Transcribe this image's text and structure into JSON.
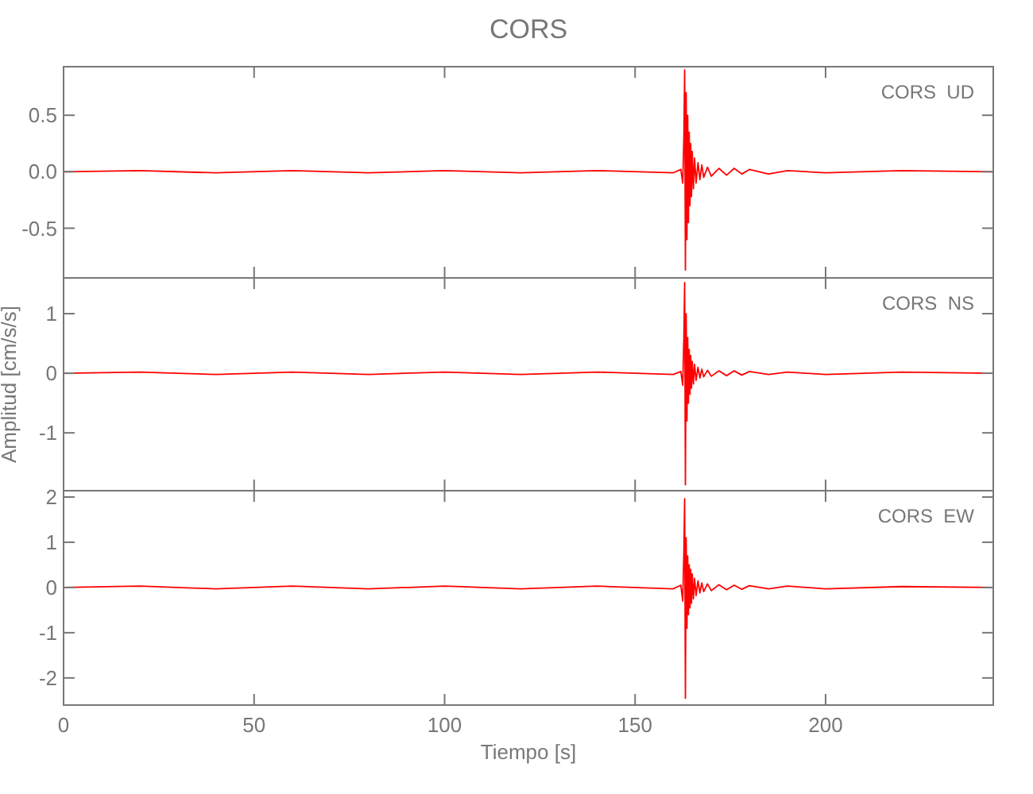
{
  "chart_data": [
    {
      "type": "line",
      "title": "CORS",
      "annotations": [
        "CORS  UD"
      ],
      "tick_labels": "y",
      "xlim": [
        0,
        244
      ],
      "xticks": [
        0,
        50,
        100,
        150,
        200
      ],
      "ylim": [
        -0.94,
        0.93
      ],
      "yticks": [
        {
          "value": 0.5,
          "label": "0.5"
        },
        {
          "value": 0,
          "label": "0.0"
        },
        {
          "value": -0.5,
          "label": "-0.5"
        }
      ],
      "series": [
        {
          "color": "#ff0000",
          "x": [
            0,
            20,
            40,
            60,
            80,
            100,
            120,
            140,
            160,
            162,
            162.5,
            162.8,
            163,
            163.2,
            163.4,
            163.6,
            163.8,
            164,
            164.2,
            164.4,
            164.6,
            164.8,
            165,
            165.3,
            165.6,
            166,
            166.5,
            167,
            167.5,
            168,
            169,
            170,
            172,
            174,
            176,
            178,
            180,
            185,
            190,
            200,
            220,
            244
          ],
          "values": [
            0,
            0.01,
            -0.01,
            0.01,
            -0.01,
            0.01,
            -0.01,
            0.01,
            -0.01,
            0.02,
            -0.1,
            0.3,
            0.9,
            -0.87,
            0.7,
            -0.6,
            0.5,
            -0.45,
            0.35,
            -0.3,
            0.25,
            -0.22,
            0.18,
            -0.15,
            0.12,
            -0.1,
            0.08,
            -0.07,
            0.06,
            -0.05,
            0.04,
            -0.04,
            0.03,
            -0.03,
            0.03,
            -0.02,
            0.02,
            -0.02,
            0.01,
            -0.01,
            0.01,
            0
          ]
        }
      ]
    },
    {
      "type": "line",
      "ylabel": "Amplitud [cm/s/s]",
      "annotations": [
        "CORS  NS"
      ],
      "tick_labels": "y",
      "xlim": [
        0,
        244
      ],
      "xticks": [
        0,
        50,
        100,
        150,
        200
      ],
      "ylim": [
        -1.97,
        1.6
      ],
      "yticks": [
        1,
        0,
        -1
      ],
      "series": [
        {
          "color": "#ff0000",
          "x": [
            0,
            20,
            40,
            60,
            80,
            100,
            120,
            140,
            160,
            162,
            162.5,
            162.8,
            163,
            163.2,
            163.4,
            163.6,
            163.8,
            164,
            164.2,
            164.4,
            164.6,
            164.8,
            165,
            165.3,
            165.6,
            166,
            166.5,
            167,
            167.5,
            168,
            169,
            170,
            172,
            174,
            176,
            178,
            180,
            185,
            190,
            200,
            220,
            244
          ],
          "values": [
            0,
            0.02,
            -0.02,
            0.02,
            -0.02,
            0.02,
            -0.02,
            0.02,
            -0.02,
            0.03,
            -0.2,
            0.6,
            1.52,
            -1.87,
            1.0,
            -0.8,
            0.6,
            -0.5,
            0.4,
            -0.35,
            0.3,
            -0.25,
            0.2,
            -0.18,
            0.15,
            -0.12,
            0.1,
            -0.08,
            0.07,
            -0.06,
            0.05,
            -0.05,
            0.04,
            -0.04,
            0.04,
            -0.03,
            0.03,
            -0.02,
            0.02,
            -0.02,
            0.02,
            0
          ]
        }
      ]
    },
    {
      "type": "line",
      "xlabel": "Tiempo [s]",
      "annotations": [
        "CORS  EW"
      ],
      "xlim": [
        0,
        244
      ],
      "xticks": [
        0,
        50,
        100,
        150,
        200
      ],
      "ylim": [
        -2.6,
        2.14
      ],
      "yticks": [
        2,
        1,
        0,
        -1,
        -2
      ],
      "series": [
        {
          "color": "#ff0000",
          "x": [
            0,
            20,
            40,
            60,
            80,
            100,
            120,
            140,
            160,
            162,
            162.5,
            162.8,
            163,
            163.2,
            163.4,
            163.6,
            163.8,
            164,
            164.2,
            164.4,
            164.6,
            164.8,
            165,
            165.3,
            165.6,
            166,
            166.5,
            167,
            167.5,
            168,
            169,
            170,
            172,
            174,
            176,
            178,
            180,
            185,
            190,
            200,
            220,
            244
          ],
          "values": [
            0,
            0.03,
            -0.03,
            0.03,
            -0.03,
            0.03,
            -0.03,
            0.03,
            -0.03,
            0.05,
            -0.3,
            0.8,
            1.96,
            -2.45,
            1.1,
            -0.9,
            0.7,
            -0.6,
            0.5,
            -0.45,
            0.4,
            -0.35,
            0.3,
            -0.25,
            0.2,
            -0.18,
            0.15,
            -0.12,
            0.1,
            -0.09,
            0.08,
            -0.07,
            0.06,
            -0.05,
            0.05,
            -0.04,
            0.04,
            -0.03,
            0.03,
            -0.03,
            0.02,
            0
          ]
        }
      ]
    }
  ]
}
